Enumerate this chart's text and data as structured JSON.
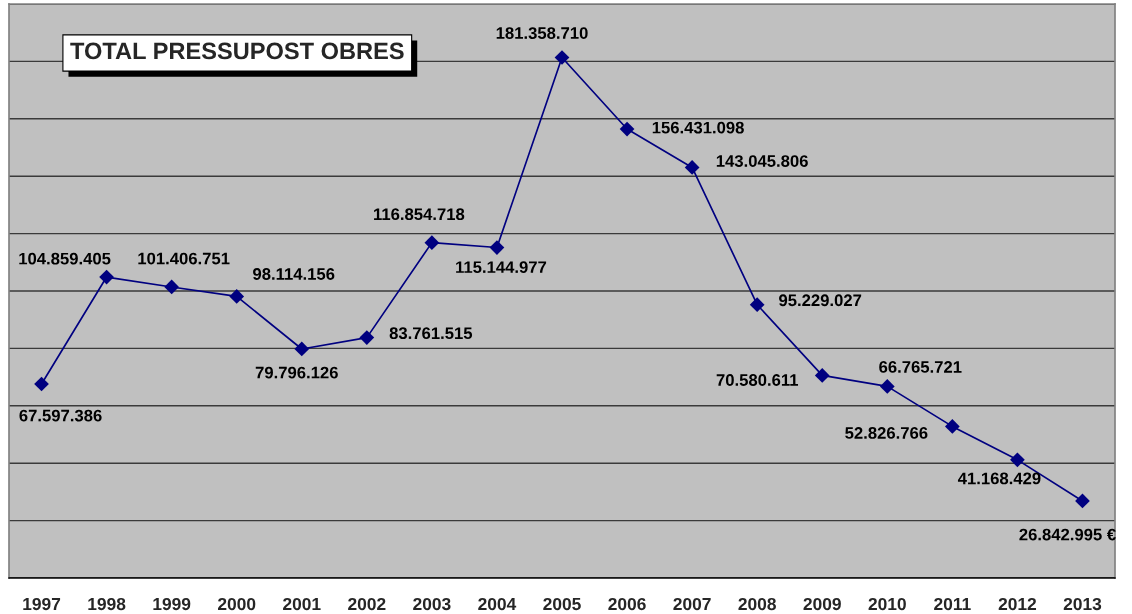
{
  "chart_data": {
    "type": "line",
    "title": "TOTAL PRESSUPOST OBRES",
    "categories": [
      "1997",
      "1998",
      "1999",
      "2000",
      "2001",
      "2002",
      "2003",
      "2004",
      "2005",
      "2006",
      "2007",
      "2008",
      "2009",
      "2010",
      "2011",
      "2012",
      "2013"
    ],
    "series": [
      {
        "color": "#000080",
        "values": [
          67597386,
          104859405,
          101406751,
          98114156,
          79796126,
          83761515,
          116854718,
          115144977,
          181358710,
          156431098,
          143045806,
          95229027,
          70580611,
          66765721,
          52826766,
          41168429,
          26842995
        ],
        "value_labels": [
          "67.597.386",
          "104.859.405",
          "101.406.751",
          "98.114.156",
          "79.796.126",
          "83.761.515",
          "116.854.718",
          "115.144.977",
          "181.358.710",
          "156.431.098",
          "143.045.806",
          "95.229.027",
          "70.580.611",
          "66.765.721",
          "52.826.766",
          "41.168.429",
          "26.842.995 €"
        ]
      }
    ],
    "ylim": [
      0,
      200000000
    ],
    "yticks": [
      {
        "value": 0,
        "label": null
      },
      {
        "value": 20000000,
        "label": null
      },
      {
        "value": 40000000,
        "label": null
      },
      {
        "value": 60000000,
        "label": null
      },
      {
        "value": 80000000,
        "label": null
      },
      {
        "value": 100000000,
        "label": null
      },
      {
        "value": 120000000,
        "label": null
      },
      {
        "value": 140000000,
        "label": null
      },
      {
        "value": 160000000,
        "label": null
      },
      {
        "value": 180000000,
        "label": null
      },
      {
        "value": 200000000,
        "label": null
      }
    ],
    "tick_labels": "x",
    "grid": "y",
    "marker": "diamond",
    "line_style": "solid"
  }
}
